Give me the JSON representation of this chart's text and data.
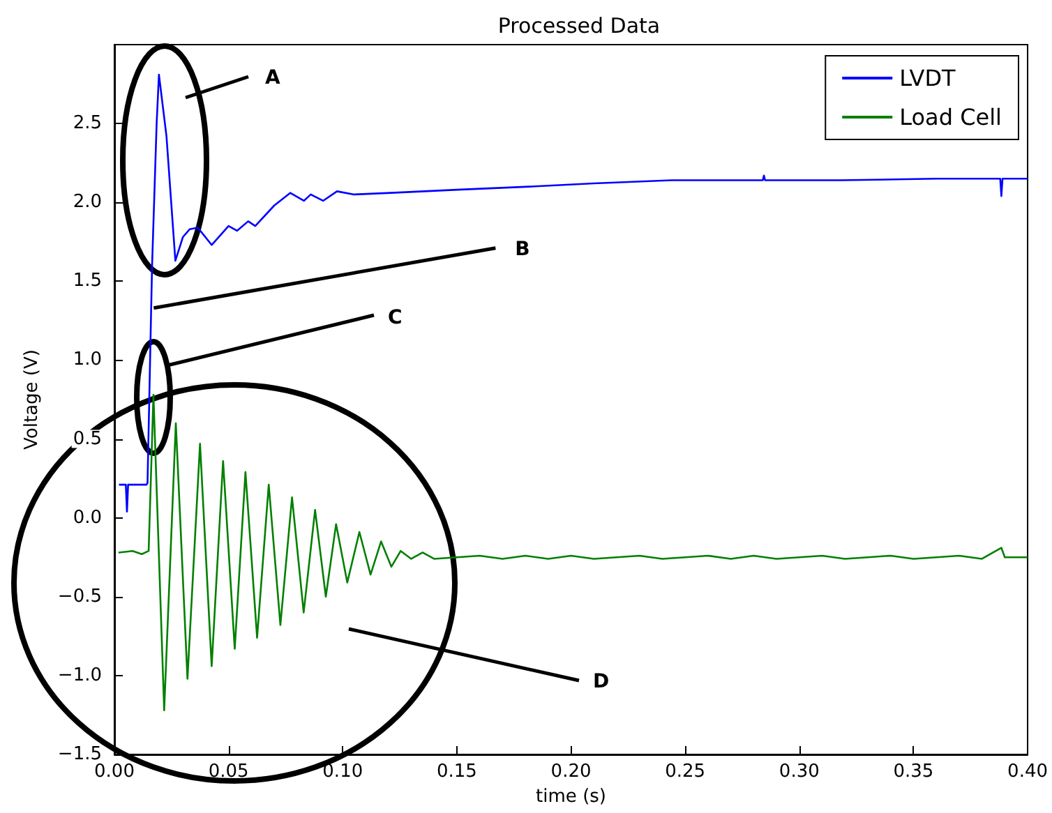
{
  "chart_data": {
    "type": "line",
    "title": "Processed Data",
    "xlabel": "time (s)",
    "ylabel": "Voltage (V)",
    "xlim": [
      0,
      0.4
    ],
    "xticks": [
      {
        "value": 0,
        "label": "0.00"
      },
      {
        "value": 0.05,
        "label": "0.05"
      },
      {
        "value": 0.1,
        "label": "0.10"
      },
      {
        "value": 0.15,
        "label": "0.15"
      },
      {
        "value": 0.2,
        "label": "0.20"
      },
      {
        "value": 0.25,
        "label": "0.25"
      },
      {
        "value": 0.3,
        "label": "0.30"
      },
      {
        "value": 0.35,
        "label": "0.35"
      },
      {
        "value": 0.4,
        "label": "0.40"
      }
    ],
    "ylim": [
      -1.5,
      3.0
    ],
    "yticks": [
      {
        "value": -1.5,
        "label": "−1.5"
      },
      {
        "value": -1,
        "label": "−1.0"
      },
      {
        "value": -0.5,
        "label": "−0.5"
      },
      {
        "value": 0,
        "label": "0.0"
      },
      {
        "value": 0.5,
        "label": "0.5"
      },
      {
        "value": 1,
        "label": "1.0"
      },
      {
        "value": 1.5,
        "label": "1.5"
      },
      {
        "value": 2,
        "label": "2.0"
      },
      {
        "value": 2.5,
        "label": "2.5"
      }
    ],
    "grid": false,
    "legend": "top right",
    "series": [
      {
        "name": "LVDT",
        "color": "#0000ff",
        "x": [
          0.002,
          0.005,
          0.0055,
          0.006,
          0.014,
          0.0145,
          0.0165,
          0.0185,
          0.0195,
          0.0228,
          0.0267,
          0.03,
          0.033,
          0.0365,
          0.0426,
          0.05,
          0.0537,
          0.0586,
          0.0617,
          0.07,
          0.077,
          0.083,
          0.086,
          0.0914,
          0.0975,
          0.105,
          0.121,
          0.15,
          0.182,
          0.21,
          0.244,
          0.284,
          0.2845,
          0.285,
          0.318,
          0.36,
          0.388,
          0.3885,
          0.389,
          0.4
        ],
        "values": [
          0.21,
          0.21,
          0.04,
          0.21,
          0.21,
          0.22,
          1.6,
          2.5,
          2.81,
          2.42,
          1.63,
          1.78,
          1.83,
          1.84,
          1.73,
          1.85,
          1.82,
          1.88,
          1.85,
          1.98,
          2.06,
          2.01,
          2.05,
          2.01,
          2.07,
          2.05,
          2.06,
          2.08,
          2.1,
          2.12,
          2.14,
          2.14,
          2.17,
          2.14,
          2.14,
          2.15,
          2.15,
          2.04,
          2.15,
          2.15
        ]
      },
      {
        "name": "Load Cell",
        "color": "#008000",
        "x": [
          0.0018,
          0.008,
          0.012,
          0.015,
          0.0171,
          0.0218,
          0.0269,
          0.032,
          0.0375,
          0.0426,
          0.0476,
          0.0527,
          0.0574,
          0.0625,
          0.0676,
          0.0727,
          0.0778,
          0.0829,
          0.0879,
          0.0926,
          0.0971,
          0.102,
          0.1073,
          0.1122,
          0.1168,
          0.1213,
          0.1254,
          0.13,
          0.135,
          0.14,
          0.15,
          0.16,
          0.17,
          0.18,
          0.19,
          0.2,
          0.21,
          0.22,
          0.23,
          0.24,
          0.25,
          0.26,
          0.27,
          0.28,
          0.29,
          0.3,
          0.31,
          0.32,
          0.33,
          0.34,
          0.35,
          0.36,
          0.37,
          0.38,
          0.3885,
          0.39,
          0.4
        ],
        "values": [
          -0.22,
          -0.21,
          -0.23,
          -0.21,
          0.78,
          -1.22,
          0.6,
          -1.02,
          0.47,
          -0.94,
          0.36,
          -0.83,
          0.29,
          -0.76,
          0.21,
          -0.68,
          0.13,
          -0.6,
          0.05,
          -0.5,
          -0.04,
          -0.41,
          -0.09,
          -0.36,
          -0.15,
          -0.31,
          -0.21,
          -0.26,
          -0.22,
          -0.26,
          -0.25,
          -0.24,
          -0.26,
          -0.24,
          -0.26,
          -0.24,
          -0.26,
          -0.25,
          -0.24,
          -0.26,
          -0.25,
          -0.24,
          -0.26,
          -0.24,
          -0.26,
          -0.25,
          -0.24,
          -0.26,
          -0.25,
          -0.24,
          -0.26,
          -0.25,
          -0.24,
          -0.26,
          -0.19,
          -0.25,
          -0.25
        ]
      }
    ],
    "annotations": [
      "A",
      {
        "text": "B",
        "x": 0.016,
        "y": 1.33
      },
      "C",
      "D"
    ]
  }
}
